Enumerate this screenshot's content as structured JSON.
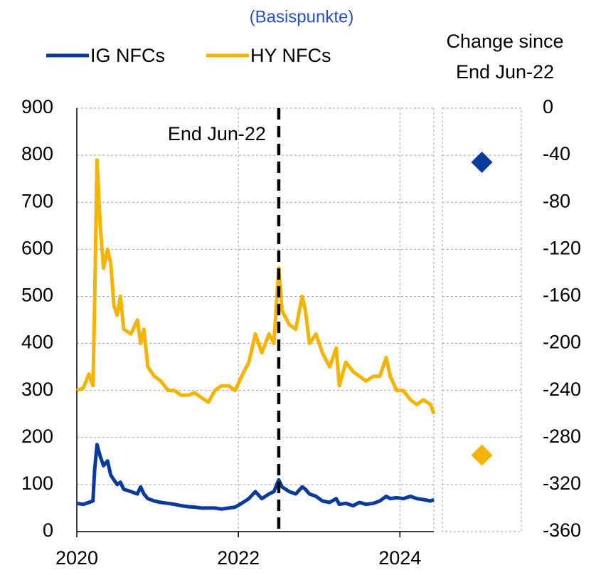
{
  "chart_data": [
    {
      "type": "line",
      "subtitle": "(Basispunkte)",
      "x": [
        2020.0,
        2020.08,
        2020.15,
        2020.2,
        2020.22,
        2020.25,
        2020.29,
        2020.33,
        2020.38,
        2020.42,
        2020.46,
        2020.5,
        2020.54,
        2020.58,
        2020.67,
        2020.75,
        2020.79,
        2020.83,
        2020.88,
        2020.96,
        2021.04,
        2021.13,
        2021.21,
        2021.29,
        2021.38,
        2021.46,
        2021.54,
        2021.63,
        2021.71,
        2021.79,
        2021.88,
        2021.96,
        2022.04,
        2022.13,
        2022.21,
        2022.29,
        2022.38,
        2022.44,
        2022.5,
        2022.54,
        2022.63,
        2022.71,
        2022.79,
        2022.83,
        2022.88,
        2022.96,
        2023.04,
        2023.13,
        2023.21,
        2023.25,
        2023.33,
        2023.42,
        2023.5,
        2023.58,
        2023.67,
        2023.75,
        2023.83,
        2023.88,
        2023.96,
        2024.04,
        2024.13,
        2024.21,
        2024.29,
        2024.38,
        2024.42
      ],
      "series": [
        {
          "name": "IG NFCs",
          "color": "#0a3a9c",
          "values": [
            60,
            58,
            62,
            65,
            130,
            185,
            160,
            140,
            150,
            120,
            110,
            100,
            105,
            90,
            85,
            80,
            95,
            80,
            70,
            65,
            62,
            60,
            58,
            55,
            53,
            52,
            50,
            50,
            50,
            48,
            50,
            52,
            60,
            70,
            85,
            70,
            80,
            85,
            110,
            95,
            85,
            80,
            95,
            90,
            80,
            75,
            65,
            62,
            70,
            58,
            60,
            55,
            62,
            58,
            60,
            65,
            75,
            70,
            72,
            70,
            75,
            70,
            68,
            65,
            68
          ]
        },
        {
          "name": "HY NFCs",
          "color": "#f5b400",
          "values": [
            300,
            305,
            335,
            310,
            480,
            790,
            650,
            560,
            600,
            570,
            480,
            460,
            500,
            430,
            420,
            450,
            400,
            430,
            350,
            330,
            320,
            300,
            300,
            290,
            290,
            295,
            285,
            275,
            300,
            310,
            310,
            300,
            330,
            360,
            420,
            380,
            420,
            400,
            560,
            470,
            440,
            430,
            500,
            470,
            400,
            420,
            380,
            350,
            390,
            310,
            360,
            340,
            330,
            320,
            330,
            330,
            370,
            330,
            300,
            300,
            280,
            270,
            280,
            270,
            250
          ]
        }
      ],
      "xlim": [
        2020,
        2024.42
      ],
      "xticks": [
        2020,
        2022,
        2024
      ],
      "ylim": [
        0,
        900
      ],
      "yticks": [
        0,
        100,
        200,
        300,
        400,
        500,
        600,
        700,
        800,
        900
      ],
      "grid": true,
      "annotation": {
        "text": "End Jun-22",
        "x": 2022.5
      }
    },
    {
      "type": "scatter",
      "title": "Change since End Jun-22",
      "ylim": [
        -360,
        0
      ],
      "yticks": [
        0,
        -40,
        -80,
        -120,
        -160,
        -200,
        -240,
        -280,
        -320,
        -360
      ],
      "grid": true,
      "series": [
        {
          "color": "#0a3a9c",
          "values": [
            -46
          ]
        },
        {
          "color": "#f5b400",
          "values": [
            -295
          ]
        }
      ]
    }
  ]
}
